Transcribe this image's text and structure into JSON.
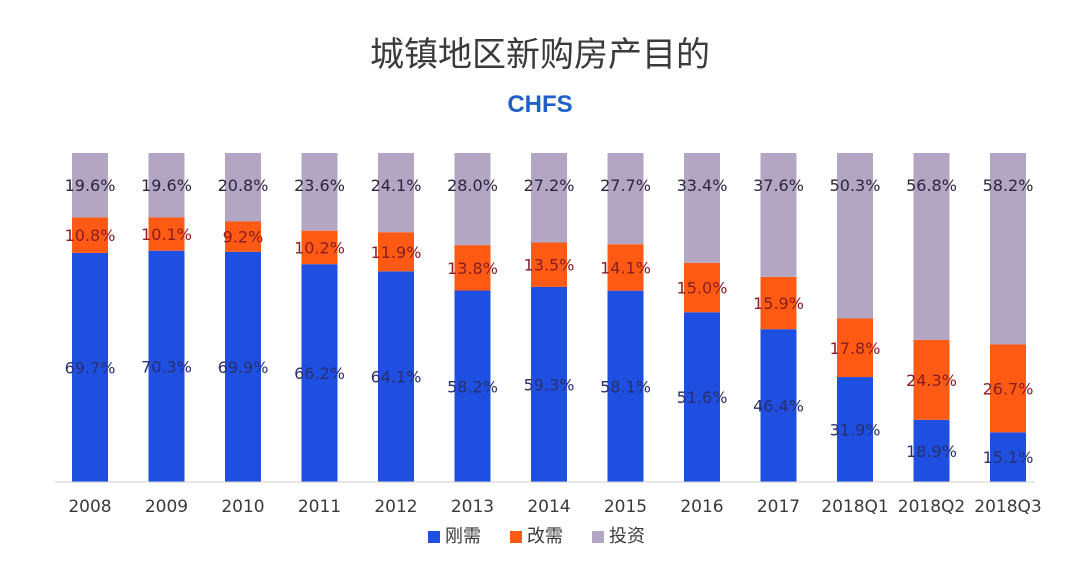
{
  "chart_data": {
    "type": "bar",
    "stacked": true,
    "normalized": true,
    "title": "城镇地区新购房产目的",
    "subtitle": "CHFS",
    "categories": [
      "2008",
      "2009",
      "2010",
      "2011",
      "2012",
      "2013",
      "2014",
      "2015",
      "2016",
      "2017",
      "2018Q1",
      "2018Q2",
      "2018Q3"
    ],
    "series": [
      {
        "name": "刚需",
        "color": "#1f4fe0",
        "label_color": "#2a2f6e",
        "labels": [
          "69.7%",
          "70.3%",
          "69.9%",
          "66.2%",
          "64.1%",
          "58.2%",
          "59.3%",
          "58.1%",
          "51.6%",
          "46.4%",
          "31.9%",
          "18.9%",
          "15.1%"
        ],
        "values": [
          69.7,
          70.3,
          69.9,
          66.2,
          64.1,
          58.2,
          59.3,
          58.1,
          51.6,
          46.4,
          31.9,
          18.9,
          15.1
        ]
      },
      {
        "name": "改需",
        "color": "#ff5a14",
        "label_color": "#8a1c22",
        "labels": [
          "10.8%",
          "10.1%",
          "9.2%",
          "10.2%",
          "11.9%",
          "13.8%",
          "13.5%",
          "14.1%",
          "15.0%",
          "15.9%",
          "17.8%",
          "24.3%",
          "26.7%"
        ],
        "values": [
          10.8,
          10.1,
          9.2,
          10.2,
          11.9,
          13.8,
          13.5,
          14.1,
          15.0,
          15.9,
          17.8,
          24.3,
          26.7
        ]
      },
      {
        "name": "投资",
        "color": "#b3a6c3",
        "label_color": "#2c2540",
        "labels": [
          "19.6%",
          "19.6%",
          "20.8%",
          "23.6%",
          "24.1%",
          "28.0%",
          "27.2%",
          "27.7%",
          "33.4%",
          "37.6%",
          "50.3%",
          "56.8%",
          "58.2%"
        ],
        "values": [
          19.6,
          19.6,
          20.8,
          23.6,
          24.1,
          28.0,
          27.2,
          27.7,
          33.4,
          37.6,
          50.3,
          56.8,
          58.2
        ]
      }
    ],
    "ylim": [
      0,
      100
    ],
    "legend_position": "bottom",
    "grid": false
  }
}
